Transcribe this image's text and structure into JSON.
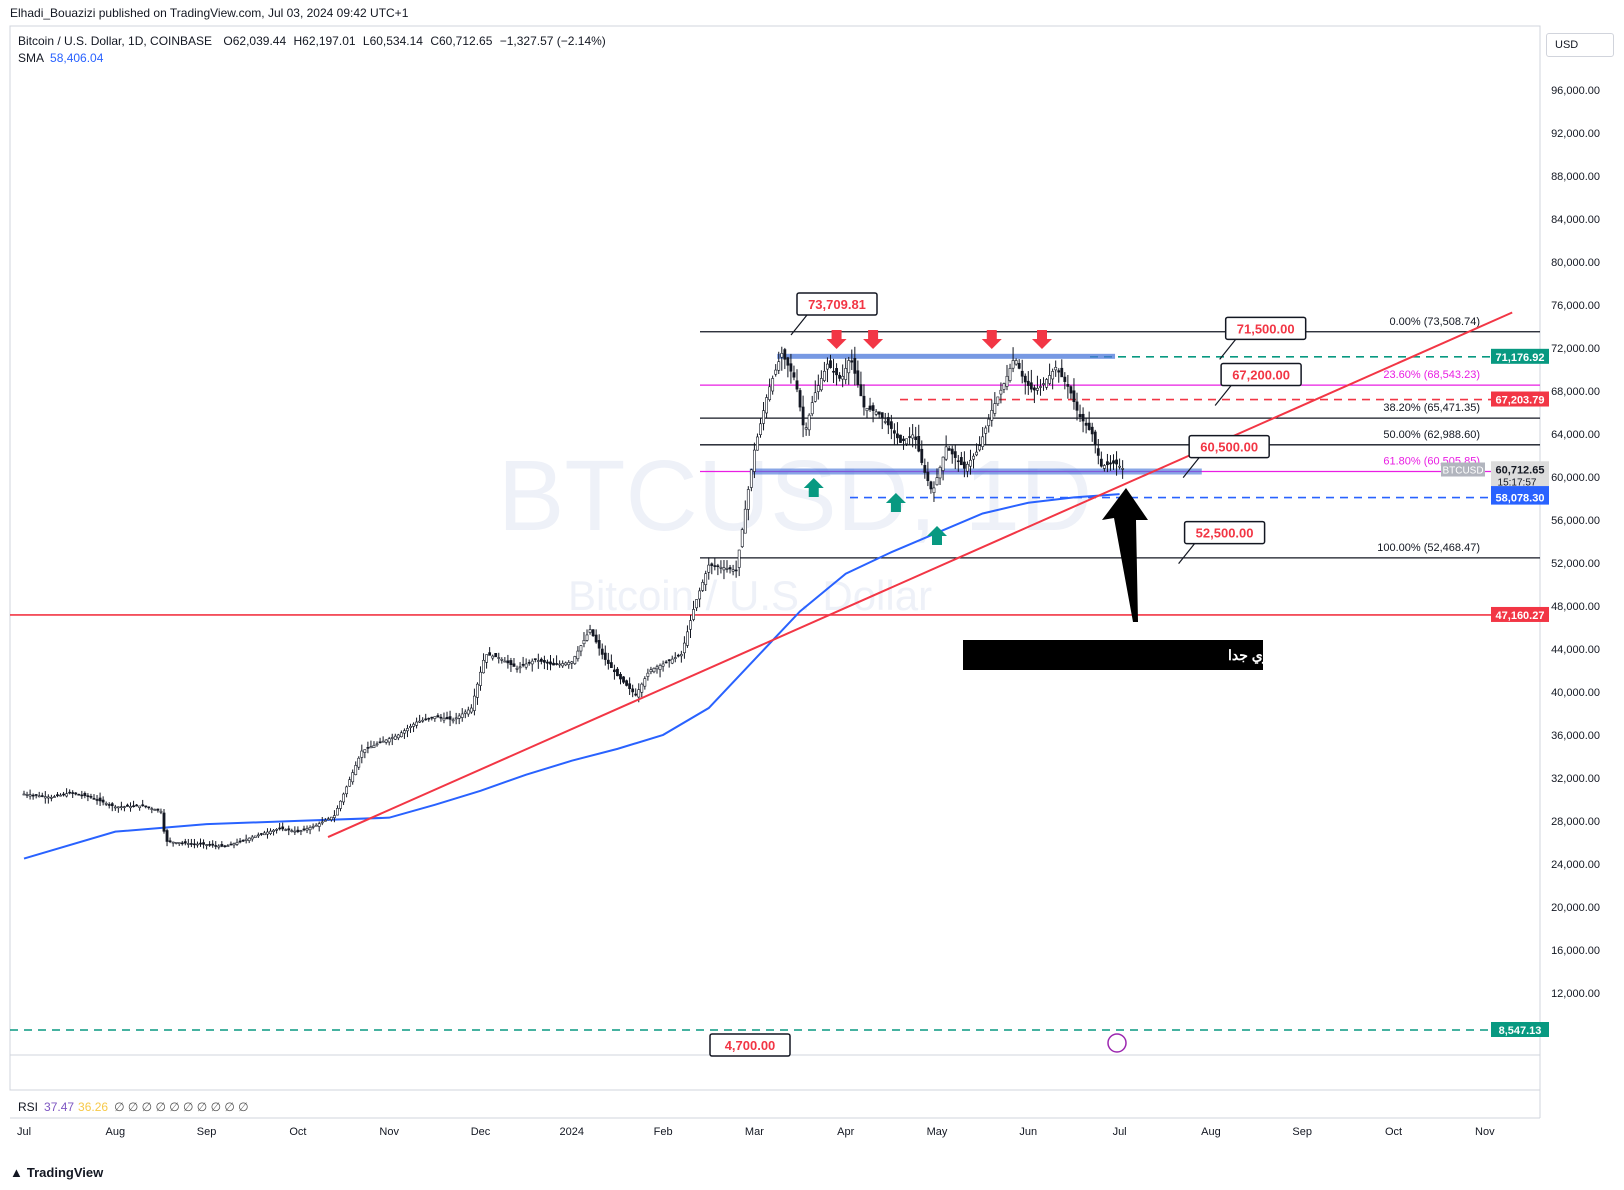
{
  "header": {
    "publish_line": "Elhadi_Bouazizi published on TradingView.com, Jul 03, 2024 09:42 UTC+1",
    "legend_title": "Bitcoin / U.S. Dollar, 1D, COINBASE",
    "open_label": "O",
    "open": "62,039.44",
    "high_label": "H",
    "high": "62,197.01",
    "low_label": "L",
    "low": "60,534.14",
    "close_label": "C",
    "close": "60,712.65",
    "change": "−1,327.57 (−2.14%)",
    "sma_label": "SMA",
    "sma_value": "58,406.04"
  },
  "rsi": {
    "label": "RSI",
    "value1": "37.47",
    "value2": "36.26",
    "na": "∅ ∅ ∅ ∅ ∅ ∅ ∅ ∅ ∅ ∅"
  },
  "currency": "USD",
  "footer": {
    "brand": "TradingView"
  },
  "watermark": {
    "line1": "BTCUSD, 1D",
    "line2": "Bitcoin / U.S. Dollar"
  },
  "colors": {
    "red": "#f23645",
    "blue": "#2962ff",
    "green": "#089981",
    "magenta": "#e91ee3",
    "black": "#131722",
    "band": "#4a77d9"
  },
  "chart_data": {
    "type": "candlestick",
    "symbol": "BTCUSD",
    "y_axis": {
      "ticks": [
        12000,
        16000,
        20000,
        24000,
        28000,
        32000,
        36000,
        40000,
        44000,
        48000,
        52000,
        56000,
        60000,
        64000,
        68000,
        72000,
        76000,
        80000,
        84000,
        88000,
        92000,
        96000
      ],
      "tick_labels": [
        "12,000.00",
        "16,000.00",
        "20,000.00",
        "24,000.00",
        "28,000.00",
        "32,000.00",
        "36,000.00",
        "40,000.00",
        "44,000.00",
        "48,000.00",
        "52,000.00",
        "56,000.00",
        "60,000.00",
        "64,000.00",
        "68,000.00",
        "72,000.00",
        "76,000.00",
        "80,000.00",
        "84,000.00",
        "88,000.00",
        "92,000.00",
        "96,000.00"
      ],
      "range": [
        7200,
        100500
      ]
    },
    "x_axis": {
      "labels": [
        "Jul",
        "Aug",
        "Sep",
        "Oct",
        "Nov",
        "Dec",
        "2024",
        "Feb",
        "Mar",
        "Apr",
        "May",
        "Jun",
        "Jul",
        "Aug",
        "Sep",
        "Oct",
        "Nov"
      ],
      "month_index": [
        0,
        1,
        2,
        3,
        4,
        5,
        6,
        7,
        8,
        9,
        10,
        11,
        12,
        13,
        14,
        15,
        16
      ]
    },
    "price_series": [
      [
        0.0,
        30500
      ],
      [
        0.3,
        30200
      ],
      [
        0.5,
        30600
      ],
      [
        0.7,
        30300
      ],
      [
        1.0,
        29300
      ],
      [
        1.3,
        29400
      ],
      [
        1.5,
        28900
      ],
      [
        1.55,
        26100
      ],
      [
        1.8,
        25900
      ],
      [
        2.0,
        25800
      ],
      [
        2.2,
        25600
      ],
      [
        2.4,
        26200
      ],
      [
        2.6,
        26800
      ],
      [
        2.8,
        27300
      ],
      [
        3.0,
        27000
      ],
      [
        3.2,
        27600
      ],
      [
        3.4,
        28500
      ],
      [
        3.5,
        30500
      ],
      [
        3.7,
        34500
      ],
      [
        3.9,
        35300
      ],
      [
        4.1,
        36000
      ],
      [
        4.3,
        37200
      ],
      [
        4.5,
        37700
      ],
      [
        4.7,
        37400
      ],
      [
        4.9,
        38500
      ],
      [
        5.05,
        43500
      ],
      [
        5.2,
        43200
      ],
      [
        5.4,
        42200
      ],
      [
        5.6,
        43000
      ],
      [
        5.8,
        42500
      ],
      [
        6.0,
        42800
      ],
      [
        6.2,
        45800
      ],
      [
        6.35,
        43200
      ],
      [
        6.5,
        41500
      ],
      [
        6.7,
        39700
      ],
      [
        6.85,
        42000
      ],
      [
        7.0,
        42600
      ],
      [
        7.2,
        43500
      ],
      [
        7.35,
        48200
      ],
      [
        7.5,
        51800
      ],
      [
        7.7,
        51500
      ],
      [
        7.8,
        51300
      ],
      [
        7.9,
        57000
      ],
      [
        8.0,
        62500
      ],
      [
        8.15,
        68000
      ],
      [
        8.3,
        71500
      ],
      [
        8.45,
        69000
      ],
      [
        8.55,
        64000
      ],
      [
        8.65,
        67500
      ],
      [
        8.8,
        70500
      ],
      [
        8.95,
        69000
      ],
      [
        9.05,
        71200
      ],
      [
        9.2,
        66500
      ],
      [
        9.35,
        66000
      ],
      [
        9.5,
        64500
      ],
      [
        9.6,
        63200
      ],
      [
        9.75,
        64000
      ],
      [
        9.85,
        60800
      ],
      [
        9.95,
        58500
      ],
      [
        10.1,
        62800
      ],
      [
        10.3,
        60800
      ],
      [
        10.45,
        62500
      ],
      [
        10.6,
        66200
      ],
      [
        10.75,
        69000
      ],
      [
        10.85,
        71200
      ],
      [
        10.95,
        69000
      ],
      [
        11.05,
        68000
      ],
      [
        11.15,
        68500
      ],
      [
        11.3,
        70200
      ],
      [
        11.45,
        68200
      ],
      [
        11.55,
        65800
      ],
      [
        11.7,
        64000
      ],
      [
        11.8,
        61000
      ],
      [
        11.95,
        61300
      ],
      [
        12.05,
        60700
      ]
    ],
    "sma_series": [
      [
        0.0,
        24500
      ],
      [
        1.0,
        27000
      ],
      [
        2.0,
        27700
      ],
      [
        3.0,
        28000
      ],
      [
        4.0,
        28300
      ],
      [
        4.5,
        29500
      ],
      [
        5.0,
        30800
      ],
      [
        5.5,
        32300
      ],
      [
        6.0,
        33600
      ],
      [
        6.5,
        34700
      ],
      [
        7.0,
        36000
      ],
      [
        7.5,
        38500
      ],
      [
        8.0,
        43000
      ],
      [
        8.5,
        47500
      ],
      [
        9.0,
        51000
      ],
      [
        9.5,
        53000
      ],
      [
        10.0,
        54800
      ],
      [
        10.5,
        56600
      ],
      [
        11.0,
        57600
      ],
      [
        11.5,
        58100
      ],
      [
        12.0,
        58406
      ]
    ],
    "sma_period_label": "SMA 58,406.04",
    "horizontal_lines": [
      {
        "kind": "fib",
        "label": "0.00% (73,508.74)",
        "price": 73508.74,
        "color": "#131722"
      },
      {
        "kind": "fib",
        "label": "23.60% (68,543.23)",
        "price": 68543.23,
        "color": "#e91ee3"
      },
      {
        "kind": "fib",
        "label": "38.20% (65,471.35)",
        "price": 65471.35,
        "color": "#131722"
      },
      {
        "kind": "fib",
        "label": "50.00% (62,988.60)",
        "price": 62988.6,
        "color": "#131722"
      },
      {
        "kind": "fib",
        "label": "61.80% (60,505.85)",
        "price": 60505.85,
        "color": "#e91ee3"
      },
      {
        "kind": "fib",
        "label": "100.00% (52,468.47)",
        "price": 52468.47,
        "color": "#131722"
      },
      {
        "kind": "level",
        "price": 71176.92,
        "color": "#089981",
        "style": "dashed"
      },
      {
        "kind": "level",
        "price": 67203.79,
        "color": "#f23645",
        "style": "dashed"
      },
      {
        "kind": "level",
        "price": 58078.3,
        "color": "#2962ff",
        "style": "dashed"
      },
      {
        "kind": "level",
        "price": 47160.27,
        "color": "#f23645",
        "style": "solid"
      },
      {
        "kind": "level",
        "price": 8547.13,
        "color": "#089981",
        "style": "dashed"
      }
    ],
    "price_tags": [
      {
        "price": 71176.92,
        "label": "71,176.92",
        "color": "#089981"
      },
      {
        "price": 67203.79,
        "label": "67,203.79",
        "color": "#f23645"
      },
      {
        "price": 60712.65,
        "label": "60,712.65",
        "color": "#dcdcdc",
        "sub": "15:17:57",
        "text": "#131722"
      },
      {
        "price": 58406.04,
        "label": "58,406.04",
        "color": "#2962ff"
      },
      {
        "price": 58078.3,
        "label": "58,078.30",
        "color": "#2962ff"
      },
      {
        "price": 47160.27,
        "label": "47,160.27",
        "color": "#f23645"
      },
      {
        "price": 8547.13,
        "label": "8,547.13",
        "color": "#089981"
      }
    ],
    "symbol_tag": "BTCUSD",
    "callouts": [
      {
        "label": "73,709.81",
        "price": 73709.81,
        "t": 8.35
      },
      {
        "label": "71,500.00",
        "price": 71500,
        "t": 13.6
      },
      {
        "label": "67,200.00",
        "price": 67200,
        "t": 13.55
      },
      {
        "label": "60,500.00",
        "price": 60500,
        "t": 13.2
      },
      {
        "label": "52,500.00",
        "price": 52500,
        "t": 13.15
      },
      {
        "label": "4,700.00",
        "price": 4700,
        "t": 7.8
      }
    ],
    "resistance_band": {
      "price": 71176.92,
      "from": 8.25,
      "to": 11.95
    },
    "support_band": {
      "price": 60505.85,
      "from": 7.95,
      "to": 12.9
    },
    "trendline": {
      "from": [
        3.33,
        26500
      ],
      "to": [
        16.3,
        75300
      ]
    },
    "down_arrows": [
      8.9,
      9.3,
      10.6,
      11.15
    ],
    "up_arrows": [
      8.65,
      9.55,
      10.0
    ],
    "annotation_text": "سعر البيتكوين يواجه حاجز دعم قوي جدا"
  }
}
